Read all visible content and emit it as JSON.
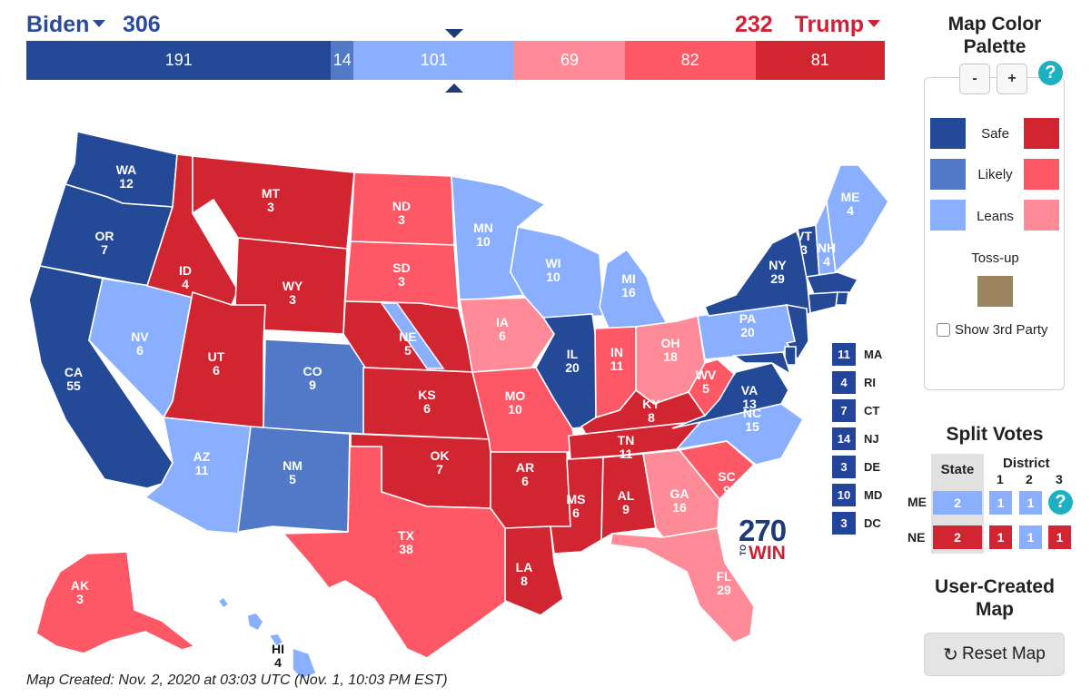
{
  "header": {
    "left_candidate": "Biden",
    "left_total": "306",
    "right_total": "232",
    "right_candidate": "Trump"
  },
  "bar_segments": [
    {
      "value": "191",
      "share": 191,
      "color": "#244a97"
    },
    {
      "value": "14",
      "share": 14,
      "color": "#5179c8"
    },
    {
      "value": "101",
      "share": 101,
      "color": "#8aafff"
    },
    {
      "value": "69",
      "share": 69,
      "color": "#ff8b98"
    },
    {
      "value": "82",
      "share": 82,
      "color": "#fe5866"
    },
    {
      "value": "81",
      "share": 81,
      "color": "#d22532"
    }
  ],
  "colors": {
    "safe_d": "#244a97",
    "likely_d": "#5179c8",
    "leans_d": "#8aafff",
    "tossup": "#9c8460",
    "leans_r": "#ff8b98",
    "likely_r": "#fe5866",
    "safe_r": "#d22532"
  },
  "states": [
    {
      "abbr": "WA",
      "ev": "12",
      "rating": "safe_d"
    },
    {
      "abbr": "OR",
      "ev": "7",
      "rating": "safe_d"
    },
    {
      "abbr": "CA",
      "ev": "55",
      "rating": "safe_d"
    },
    {
      "abbr": "NV",
      "ev": "6",
      "rating": "leans_d"
    },
    {
      "abbr": "ID",
      "ev": "4",
      "rating": "safe_r"
    },
    {
      "abbr": "MT",
      "ev": "3",
      "rating": "safe_r"
    },
    {
      "abbr": "WY",
      "ev": "3",
      "rating": "safe_r"
    },
    {
      "abbr": "UT",
      "ev": "6",
      "rating": "safe_r"
    },
    {
      "abbr": "AZ",
      "ev": "11",
      "rating": "leans_d"
    },
    {
      "abbr": "CO",
      "ev": "9",
      "rating": "likely_d"
    },
    {
      "abbr": "NM",
      "ev": "5",
      "rating": "likely_d"
    },
    {
      "abbr": "ND",
      "ev": "3",
      "rating": "likely_r"
    },
    {
      "abbr": "SD",
      "ev": "3",
      "rating": "likely_r"
    },
    {
      "abbr": "NE",
      "ev": "5",
      "rating": "safe_r"
    },
    {
      "abbr": "KS",
      "ev": "6",
      "rating": "safe_r"
    },
    {
      "abbr": "OK",
      "ev": "7",
      "rating": "safe_r"
    },
    {
      "abbr": "TX",
      "ev": "38",
      "rating": "likely_r"
    },
    {
      "abbr": "MN",
      "ev": "10",
      "rating": "leans_d"
    },
    {
      "abbr": "IA",
      "ev": "6",
      "rating": "leans_r"
    },
    {
      "abbr": "MO",
      "ev": "10",
      "rating": "likely_r"
    },
    {
      "abbr": "AR",
      "ev": "6",
      "rating": "safe_r"
    },
    {
      "abbr": "LA",
      "ev": "8",
      "rating": "safe_r"
    },
    {
      "abbr": "WI",
      "ev": "10",
      "rating": "leans_d"
    },
    {
      "abbr": "IL",
      "ev": "20",
      "rating": "safe_d"
    },
    {
      "abbr": "MI",
      "ev": "16",
      "rating": "leans_d"
    },
    {
      "abbr": "IN",
      "ev": "11",
      "rating": "likely_r"
    },
    {
      "abbr": "OH",
      "ev": "18",
      "rating": "leans_r"
    },
    {
      "abbr": "KY",
      "ev": "8",
      "rating": "safe_r"
    },
    {
      "abbr": "TN",
      "ev": "11",
      "rating": "safe_r"
    },
    {
      "abbr": "MS",
      "ev": "6",
      "rating": "safe_r"
    },
    {
      "abbr": "AL",
      "ev": "9",
      "rating": "safe_r"
    },
    {
      "abbr": "GA",
      "ev": "16",
      "rating": "leans_r"
    },
    {
      "abbr": "FL",
      "ev": "29",
      "rating": "leans_r"
    },
    {
      "abbr": "SC",
      "ev": "9",
      "rating": "likely_r"
    },
    {
      "abbr": "NC",
      "ev": "15",
      "rating": "leans_d"
    },
    {
      "abbr": "VA",
      "ev": "13",
      "rating": "safe_d"
    },
    {
      "abbr": "WV",
      "ev": "5",
      "rating": "likely_r"
    },
    {
      "abbr": "PA",
      "ev": "20",
      "rating": "leans_d"
    },
    {
      "abbr": "NY",
      "ev": "29",
      "rating": "safe_d"
    },
    {
      "abbr": "VT",
      "ev": "3",
      "rating": "safe_d"
    },
    {
      "abbr": "NH",
      "ev": "4",
      "rating": "leans_d"
    },
    {
      "abbr": "ME",
      "ev": "4",
      "rating": "leans_d"
    },
    {
      "abbr": "AK",
      "ev": "3",
      "rating": "likely_r"
    },
    {
      "abbr": "HI",
      "ev": "4",
      "rating": "leans_d"
    }
  ],
  "small_states": [
    {
      "abbr": "MA",
      "ev": "11"
    },
    {
      "abbr": "RI",
      "ev": "4"
    },
    {
      "abbr": "CT",
      "ev": "7"
    },
    {
      "abbr": "NJ",
      "ev": "14"
    },
    {
      "abbr": "DE",
      "ev": "3"
    },
    {
      "abbr": "MD",
      "ev": "10"
    },
    {
      "abbr": "DC",
      "ev": "3"
    }
  ],
  "logo": {
    "number": "270",
    "to": "TO",
    "win": "WIN"
  },
  "map_created": "Map Created: Nov. 2, 2020 at 03:03 UTC (Nov. 1, 10:03 PM EST)",
  "palette": {
    "title": "Map Color Palette",
    "minus": "-",
    "plus": "+",
    "help": "?",
    "safe": "Safe",
    "likely": "Likely",
    "leans": "Leans",
    "tossup": "Toss-up",
    "show_3rd_party": "Show 3rd Party"
  },
  "split_votes": {
    "title": "Split Votes",
    "state_header": "State",
    "district_header": "District",
    "district_numbers": [
      "1",
      "2",
      "3"
    ],
    "me": {
      "label": "ME",
      "state": "2",
      "d1": "1",
      "d2": "1"
    },
    "ne": {
      "label": "NE",
      "state": "2",
      "d1": "1",
      "d2": "1",
      "d3": "1"
    },
    "help": "?"
  },
  "user_map": {
    "title": "User-Created Map",
    "reset": "Reset Map"
  }
}
